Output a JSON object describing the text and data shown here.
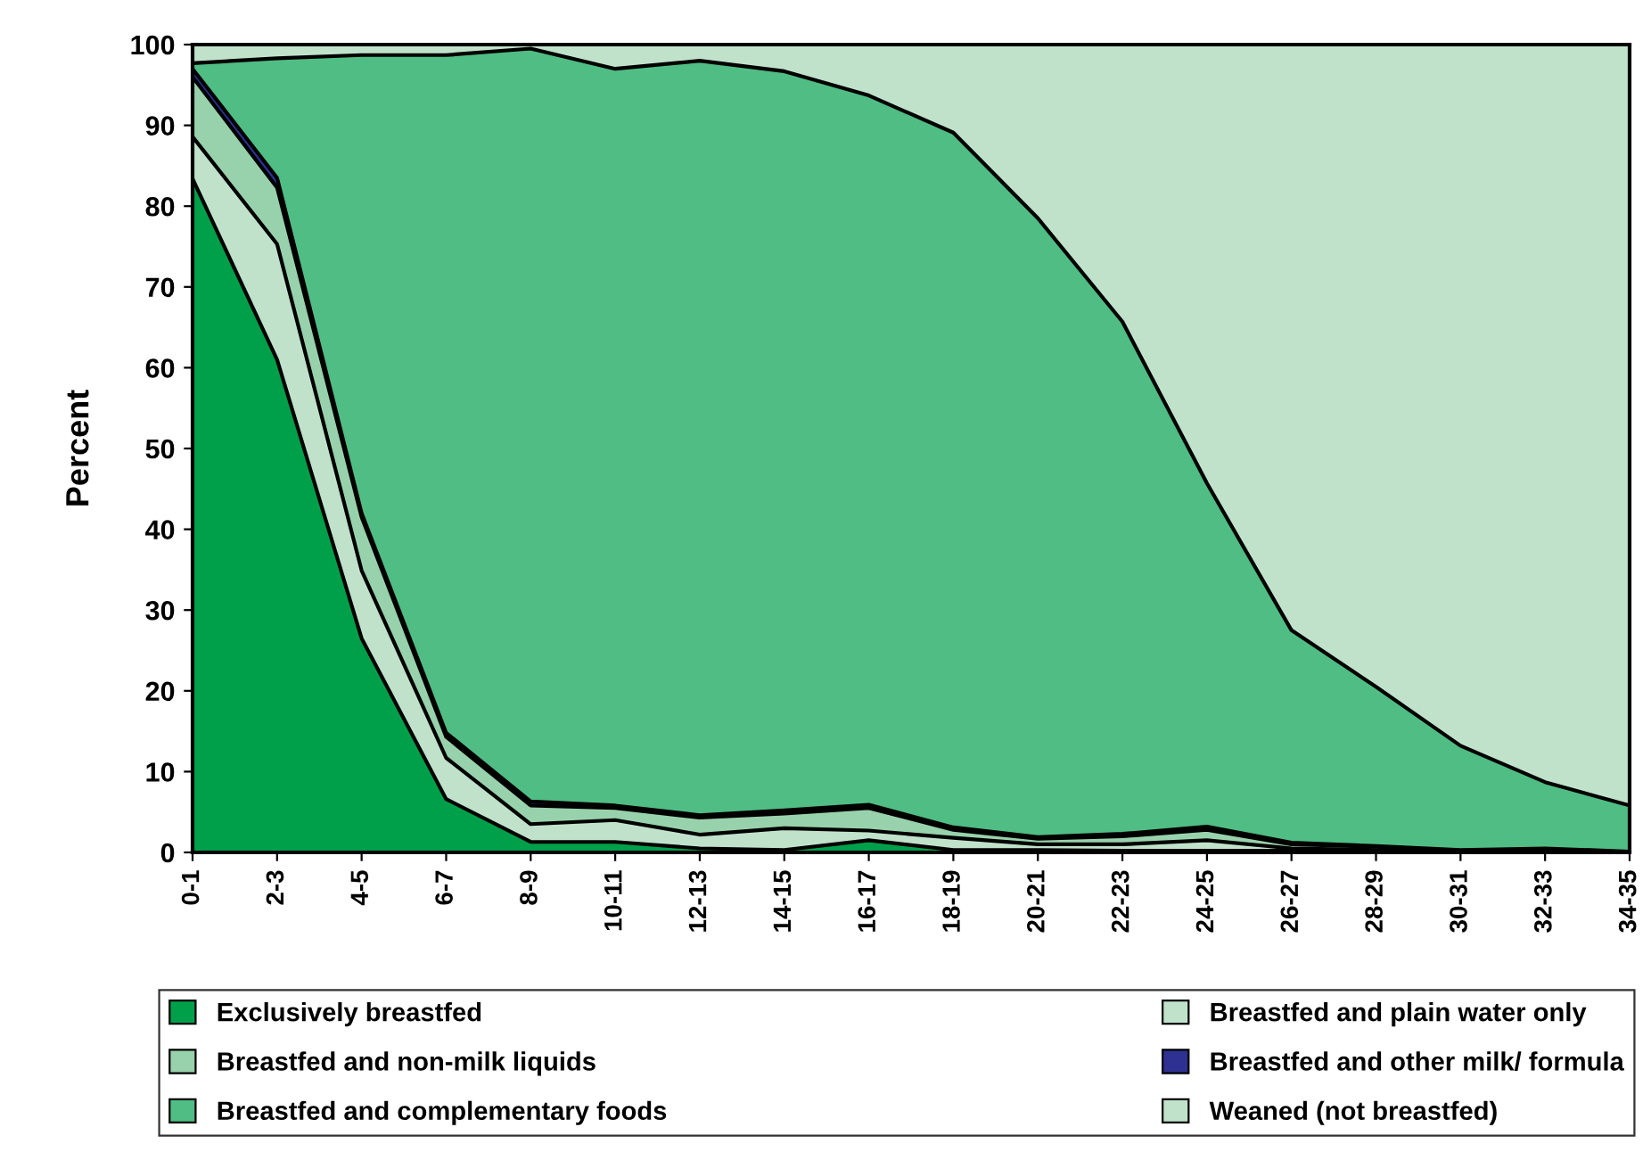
{
  "chart_data": {
    "type": "area",
    "stacked": true,
    "ylabel": "Percent",
    "categories": [
      "0-1",
      "2-3",
      "4-5",
      "6-7",
      "8-9",
      "10-11",
      "12-13",
      "14-15",
      "16-17",
      "18-19",
      "20-21",
      "22-23",
      "24-25",
      "26-27",
      "28-29",
      "30-31",
      "32-33",
      "34-35"
    ],
    "series": [
      {
        "name": "Exclusively breastfed",
        "color": "#00a04a",
        "values": [
          83.4,
          61,
          26.5,
          6.6,
          1.3,
          1.3,
          0.5,
          0.3,
          1.5,
          0.3,
          0.3,
          0.2,
          0.2,
          0.2,
          0.2,
          0,
          0,
          0
        ]
      },
      {
        "name": "Breastfed and plain water only",
        "color": "#c0e2cb",
        "values": [
          5.2,
          14.3,
          8.4,
          5.1,
          2.2,
          2.7,
          1.7,
          2.7,
          1.2,
          1.5,
          0.7,
          0.8,
          1.3,
          0.3,
          0.1,
          0,
          0,
          0
        ]
      },
      {
        "name": "Breastfed and non-milk liquids",
        "color": "#98d2ac",
        "values": [
          7.4,
          7,
          6.6,
          2.6,
          2.3,
          1.5,
          2.1,
          1.8,
          2.8,
          1,
          0.7,
          1,
          1.3,
          0.5,
          0.4,
          0.2,
          0.3,
          0
        ]
      },
      {
        "name": "Breastfed and other milk/ formula",
        "color": "#2e3192",
        "values": [
          1,
          1.2,
          0.5,
          0.5,
          0.5,
          0.3,
          0.3,
          0.4,
          0.4,
          0.3,
          0.2,
          0.3,
          0.4,
          0.2,
          0.1,
          0.1,
          0.2,
          0.1
        ]
      },
      {
        "name": "Breastfed and complementary foods",
        "color": "#50bd84",
        "values": [
          0.7,
          14.8,
          56.7,
          83.9,
          93.2,
          91.2,
          93.4,
          91.5,
          87.8,
          86,
          76.6,
          63.4,
          42.5,
          26.3,
          19.7,
          12.9,
          8.2,
          5.7
        ]
      },
      {
        "name": "Weaned (not breastfed)",
        "color": "#c0e2cb",
        "values": [
          2.3,
          1.7,
          1.3,
          1.3,
          0.5,
          3,
          2,
          3.3,
          6.3,
          10.9,
          21.5,
          34.3,
          54.3,
          72.5,
          79.5,
          86.8,
          91.3,
          94.2
        ]
      }
    ],
    "ylim": [
      0,
      100
    ],
    "yticks": [
      0,
      10,
      20,
      30,
      40,
      50,
      60,
      70,
      80,
      90,
      100
    ],
    "grid": false,
    "legend": "bottom"
  }
}
